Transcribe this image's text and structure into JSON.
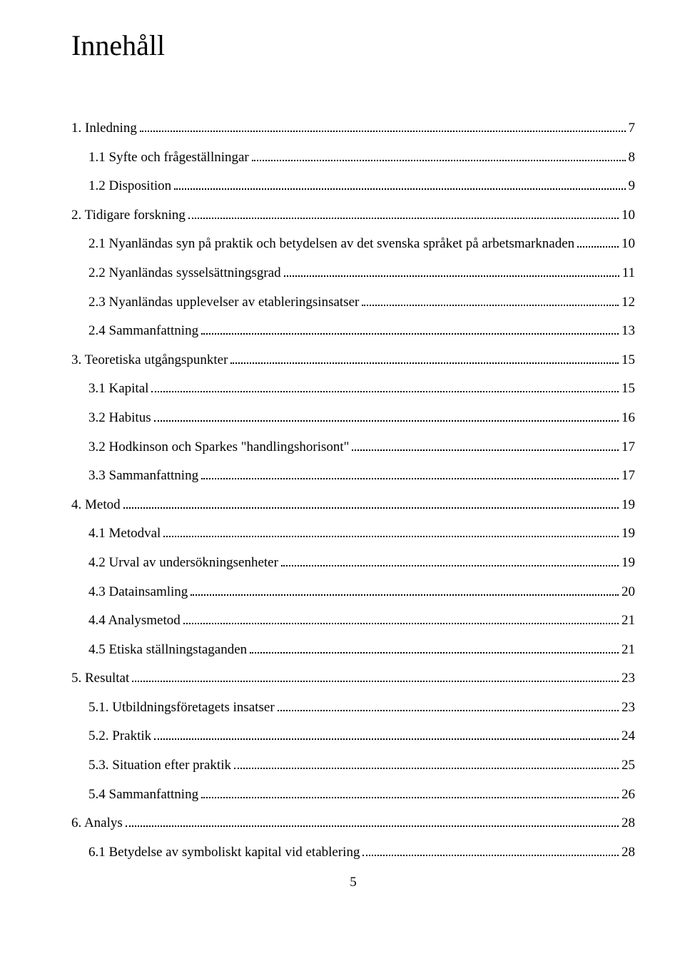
{
  "title": "Innehåll",
  "page_number": "5",
  "toc": [
    {
      "label": "1. Inledning",
      "page": "7",
      "indent": false
    },
    {
      "label": "1.1 Syfte och frågeställningar",
      "page": "8",
      "indent": true
    },
    {
      "label": "1.2 Disposition",
      "page": "9",
      "indent": true
    },
    {
      "label": "2. Tidigare forskning",
      "page": "10",
      "indent": false
    },
    {
      "label": "2.1 Nyanländas syn på praktik och betydelsen av det svenska språket på arbetsmarknaden",
      "page": "10",
      "indent": true
    },
    {
      "label": "2.2 Nyanländas sysselsättningsgrad",
      "page": "11",
      "indent": true
    },
    {
      "label": "2.3 Nyanländas upplevelser av etableringsinsatser",
      "page": "12",
      "indent": true
    },
    {
      "label": "2.4 Sammanfattning",
      "page": "13",
      "indent": true
    },
    {
      "label": "3. Teoretiska utgångspunkter",
      "page": "15",
      "indent": false
    },
    {
      "label": "3.1 Kapital",
      "page": "15",
      "indent": true
    },
    {
      "label": "3.2 Habitus",
      "page": "16",
      "indent": true
    },
    {
      "label": "3.2 Hodkinson och Sparkes \"handlingshorisont\"",
      "page": "17",
      "indent": true
    },
    {
      "label": "3.3 Sammanfattning",
      "page": "17",
      "indent": true
    },
    {
      "label": "4. Metod",
      "page": "19",
      "indent": false
    },
    {
      "label": "4.1 Metodval",
      "page": "19",
      "indent": true
    },
    {
      "label": "4.2 Urval av undersökningsenheter",
      "page": "19",
      "indent": true
    },
    {
      "label": "4.3 Datainsamling",
      "page": "20",
      "indent": true
    },
    {
      "label": "4.4 Analysmetod",
      "page": "21",
      "indent": true
    },
    {
      "label": "4.5 Etiska ställningstaganden",
      "page": "21",
      "indent": true
    },
    {
      "label": "5. Resultat",
      "page": "23",
      "indent": false
    },
    {
      "label": "5.1. Utbildningsföretagets insatser",
      "page": "23",
      "indent": true
    },
    {
      "label": "5.2. Praktik",
      "page": "24",
      "indent": true
    },
    {
      "label": "5.3. Situation efter praktik",
      "page": "25",
      "indent": true
    },
    {
      "label": "5.4 Sammanfattning",
      "page": "26",
      "indent": true
    },
    {
      "label": "6. Analys",
      "page": "28",
      "indent": false
    },
    {
      "label": "6.1 Betydelse av symboliskt kapital vid etablering",
      "page": "28",
      "indent": true
    }
  ]
}
